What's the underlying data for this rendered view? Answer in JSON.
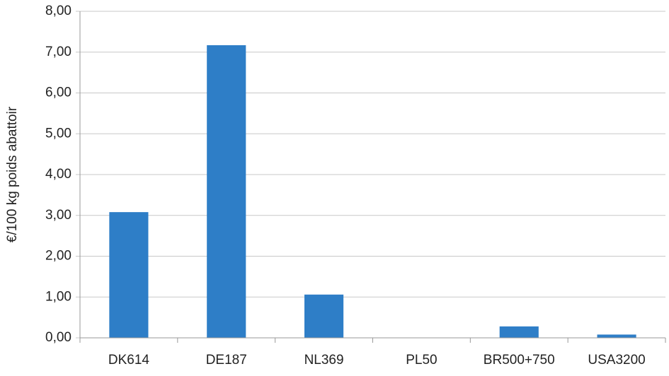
{
  "chart_data": {
    "type": "bar",
    "y_label": "€/100 kg poids abattoir",
    "categories": [
      "DK614",
      "DE187",
      "NL369",
      "PL50",
      "BR500+750",
      "USA3200"
    ],
    "values": [
      3.08,
      7.17,
      1.06,
      0,
      0.28,
      0.08
    ],
    "color": "#2e7ec7",
    "ylim": [
      0,
      8
    ],
    "yticks": [
      {
        "value": 0,
        "label": "0,00"
      },
      {
        "value": 1,
        "label": "1,00"
      },
      {
        "value": 2,
        "label": "2,00"
      },
      {
        "value": 3,
        "label": "3,00"
      },
      {
        "value": 4,
        "label": "4,00"
      },
      {
        "value": 5,
        "label": "5,00"
      },
      {
        "value": 6,
        "label": "6,00"
      },
      {
        "value": 7,
        "label": "7,00"
      },
      {
        "value": 8,
        "label": "8,00"
      }
    ],
    "grid": true
  }
}
